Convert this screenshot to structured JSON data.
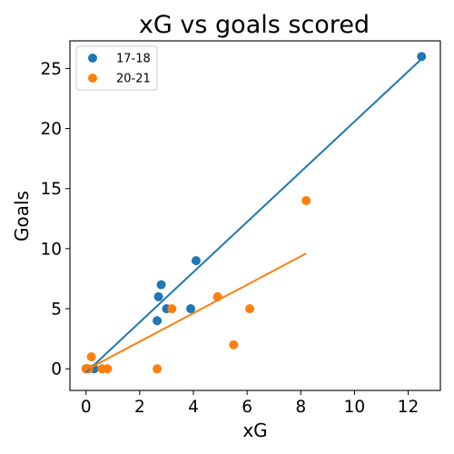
{
  "chart_data": {
    "type": "scatter",
    "title": "xG vs goals scored",
    "xlabel": "xG",
    "ylabel": "Goals",
    "xlim": [
      -0.6,
      13.2
    ],
    "ylim": [
      -1.8,
      27.3
    ],
    "xticks": [
      0,
      2,
      4,
      6,
      8,
      10,
      12
    ],
    "yticks": [
      0,
      5,
      10,
      15,
      20,
      25
    ],
    "grid": false,
    "legend_position": "top-left",
    "series": [
      {
        "name": "17-18",
        "color": "#1f77b4",
        "points": [
          {
            "x": 0.0,
            "y": 0
          },
          {
            "x": 0.05,
            "y": 0
          },
          {
            "x": 0.3,
            "y": 0
          },
          {
            "x": 2.65,
            "y": 4
          },
          {
            "x": 2.7,
            "y": 6
          },
          {
            "x": 2.8,
            "y": 7
          },
          {
            "x": 3.0,
            "y": 5
          },
          {
            "x": 3.9,
            "y": 5
          },
          {
            "x": 4.1,
            "y": 9
          },
          {
            "x": 12.5,
            "y": 26
          }
        ],
        "fit": {
          "x0": 0.0,
          "y0": -0.3,
          "x1": 12.5,
          "y1": 25.8
        }
      },
      {
        "name": "20-21",
        "color": "#ff7f0e",
        "points": [
          {
            "x": 0.0,
            "y": 0
          },
          {
            "x": 0.1,
            "y": 0
          },
          {
            "x": 0.2,
            "y": 1
          },
          {
            "x": 0.6,
            "y": 0
          },
          {
            "x": 0.8,
            "y": 0
          },
          {
            "x": 2.65,
            "y": 0
          },
          {
            "x": 3.2,
            "y": 5
          },
          {
            "x": 4.9,
            "y": 6
          },
          {
            "x": 5.5,
            "y": 2
          },
          {
            "x": 6.1,
            "y": 5
          },
          {
            "x": 8.2,
            "y": 14
          }
        ],
        "fit": {
          "x0": 0.0,
          "y0": -0.1,
          "x1": 8.2,
          "y1": 9.6
        }
      }
    ]
  }
}
